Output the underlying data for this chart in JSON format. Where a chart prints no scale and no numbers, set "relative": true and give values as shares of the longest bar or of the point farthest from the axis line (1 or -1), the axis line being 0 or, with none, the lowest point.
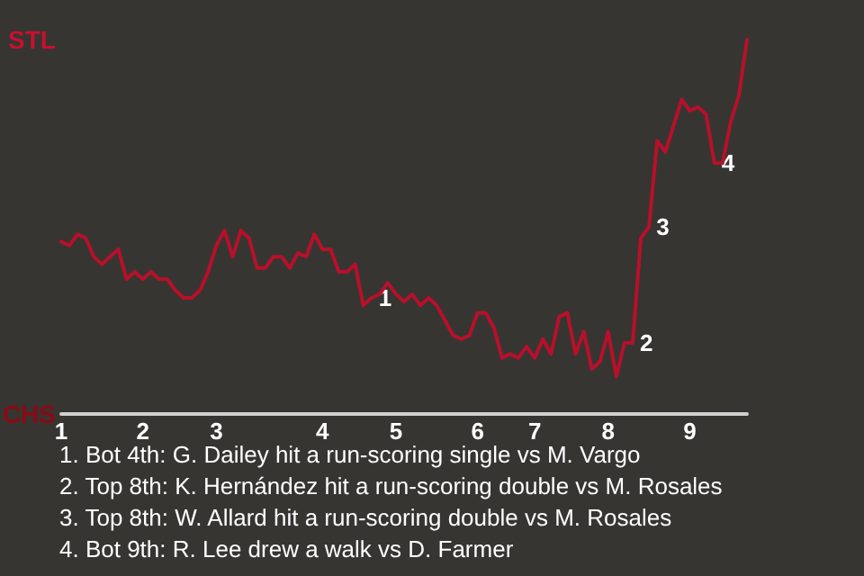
{
  "chart_data": {
    "type": "line",
    "categories": [
      "1",
      null,
      null,
      null,
      null,
      null,
      null,
      null,
      null,
      null,
      "2",
      null,
      null,
      null,
      null,
      null,
      null,
      null,
      null,
      "3",
      null,
      null,
      null,
      null,
      null,
      null,
      null,
      null,
      null,
      null,
      null,
      null,
      "4",
      null,
      null,
      null,
      null,
      null,
      null,
      null,
      null,
      "5",
      null,
      null,
      null,
      null,
      null,
      null,
      null,
      null,
      null,
      "6",
      null,
      null,
      null,
      null,
      null,
      null,
      "7",
      null,
      null,
      null,
      null,
      null,
      null,
      null,
      null,
      "8",
      null,
      null,
      null,
      null,
      null,
      null,
      null,
      null,
      null,
      "9",
      null,
      null,
      null,
      null,
      null,
      null,
      null
    ],
    "relative": true,
    "series": [
      {
        "color": "#b8102a",
        "values": [
          0.46,
          0.45,
          0.48,
          0.47,
          0.42,
          0.4,
          0.42,
          0.44,
          0.36,
          0.38,
          0.36,
          0.38,
          0.36,
          0.36,
          0.33,
          0.31,
          0.31,
          0.33,
          0.38,
          0.45,
          0.49,
          0.42,
          0.49,
          0.47,
          0.39,
          0.39,
          0.42,
          0.42,
          0.39,
          0.43,
          0.42,
          0.48,
          0.44,
          0.44,
          0.38,
          0.38,
          0.4,
          0.29,
          0.31,
          0.32,
          0.35,
          0.32,
          0.3,
          0.32,
          0.29,
          0.31,
          0.29,
          0.25,
          0.21,
          0.2,
          0.21,
          0.27,
          0.27,
          0.23,
          0.15,
          0.16,
          0.15,
          0.18,
          0.15,
          0.2,
          0.16,
          0.26,
          0.27,
          0.16,
          0.22,
          0.12,
          0.14,
          0.22,
          0.1,
          0.19,
          0.19,
          0.47,
          0.5,
          0.73,
          0.7,
          0.77,
          0.84,
          0.81,
          0.82,
          0.8,
          0.67,
          0.67,
          0.78,
          0.85,
          1
        ]
      }
    ],
    "marker": "none",
    "line_style": "solid",
    "annotations": [
      "STL",
      "CHS",
      "1",
      "2",
      "3",
      "4",
      "1. Bot 4th: G. Dailey hit a run-scoring single vs M. Vargo",
      "2. Top 8th: K. Hernández hit a run-scoring double vs M. Rosales",
      "3. Top 8th: W. Allard hit a run-scoring double vs M. Rosales",
      "4. Bot 9th: R. Lee drew a walk vs D. Farmer"
    ]
  }
}
